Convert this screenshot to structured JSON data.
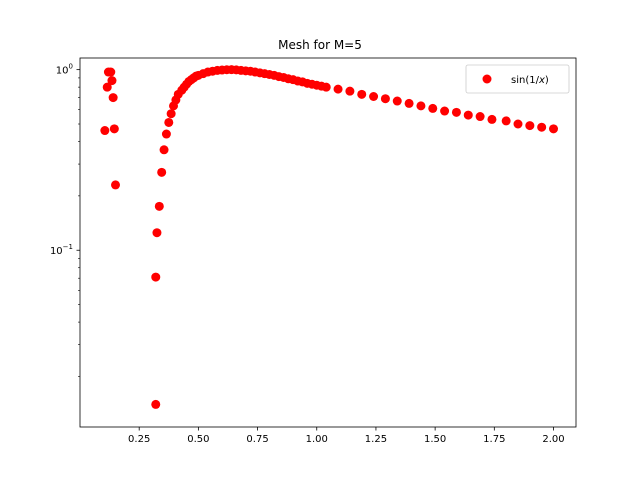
{
  "chart_data": {
    "type": "scatter",
    "title": "Mesh for M=5",
    "xlabel": "",
    "ylabel": "",
    "yscale": "log",
    "xlim": [
      0.0,
      2.095
    ],
    "ylim": [
      0.0105,
      1.16
    ],
    "grid": false,
    "legend_position": "top-right",
    "x_ticks": [
      {
        "value": 0.25,
        "label": "0.25"
      },
      {
        "value": 0.5,
        "label": "0.50"
      },
      {
        "value": 0.75,
        "label": "0.75"
      },
      {
        "value": 1.0,
        "label": "1.00"
      },
      {
        "value": 1.25,
        "label": "1.25"
      },
      {
        "value": 1.5,
        "label": "1.50"
      },
      {
        "value": 1.75,
        "label": "1.75"
      },
      {
        "value": 2.0,
        "label": "2.00"
      }
    ],
    "y_ticks": [
      {
        "value": 1.0,
        "mantissa": "10",
        "exponent": "0"
      },
      {
        "value": 0.1,
        "mantissa": "10",
        "exponent": "−1"
      }
    ],
    "series": [
      {
        "name": "sin(1/",
        "name_var": "x",
        "name_suffix": ")",
        "color": "#ff0000",
        "marker": "circle",
        "points": [
          [
            0.105,
            0.46
          ],
          [
            0.115,
            0.8
          ],
          [
            0.12,
            0.97
          ],
          [
            0.13,
            0.97
          ],
          [
            0.135,
            0.87
          ],
          [
            0.14,
            0.7
          ],
          [
            0.145,
            0.47
          ],
          [
            0.15,
            0.23
          ],
          [
            0.32,
            0.014
          ],
          [
            0.32,
            0.071
          ],
          [
            0.325,
            0.125
          ],
          [
            0.335,
            0.175
          ],
          [
            0.345,
            0.27
          ],
          [
            0.355,
            0.36
          ],
          [
            0.365,
            0.44
          ],
          [
            0.375,
            0.51
          ],
          [
            0.385,
            0.57
          ],
          [
            0.395,
            0.63
          ],
          [
            0.405,
            0.68
          ],
          [
            0.415,
            0.73
          ],
          [
            0.43,
            0.77
          ],
          [
            0.44,
            0.8
          ],
          [
            0.45,
            0.83
          ],
          [
            0.46,
            0.86
          ],
          [
            0.47,
            0.88
          ],
          [
            0.48,
            0.9
          ],
          [
            0.49,
            0.92
          ],
          [
            0.5,
            0.93
          ],
          [
            0.52,
            0.95
          ],
          [
            0.54,
            0.97
          ],
          [
            0.56,
            0.98
          ],
          [
            0.58,
            0.99
          ],
          [
            0.6,
            0.995
          ],
          [
            0.62,
            0.999
          ],
          [
            0.64,
            1.0
          ],
          [
            0.66,
            0.997
          ],
          [
            0.68,
            0.99
          ],
          [
            0.7,
            0.985
          ],
          [
            0.72,
            0.98
          ],
          [
            0.74,
            0.97
          ],
          [
            0.76,
            0.96
          ],
          [
            0.78,
            0.95
          ],
          [
            0.8,
            0.94
          ],
          [
            0.82,
            0.93
          ],
          [
            0.84,
            0.915
          ],
          [
            0.86,
            0.905
          ],
          [
            0.88,
            0.89
          ],
          [
            0.9,
            0.88
          ],
          [
            0.92,
            0.865
          ],
          [
            0.94,
            0.855
          ],
          [
            0.96,
            0.84
          ],
          [
            0.98,
            0.83
          ],
          [
            1.0,
            0.82
          ],
          [
            1.02,
            0.81
          ],
          [
            1.04,
            0.8
          ],
          [
            1.09,
            0.78
          ],
          [
            1.14,
            0.76
          ],
          [
            1.19,
            0.73
          ],
          [
            1.24,
            0.71
          ],
          [
            1.29,
            0.69
          ],
          [
            1.34,
            0.67
          ],
          [
            1.39,
            0.65
          ],
          [
            1.44,
            0.63
          ],
          [
            1.49,
            0.61
          ],
          [
            1.54,
            0.59
          ],
          [
            1.59,
            0.58
          ],
          [
            1.64,
            0.56
          ],
          [
            1.69,
            0.55
          ],
          [
            1.74,
            0.53
          ],
          [
            1.8,
            0.52
          ],
          [
            1.85,
            0.5
          ],
          [
            1.9,
            0.49
          ],
          [
            1.95,
            0.48
          ],
          [
            2.0,
            0.47
          ]
        ]
      }
    ]
  }
}
